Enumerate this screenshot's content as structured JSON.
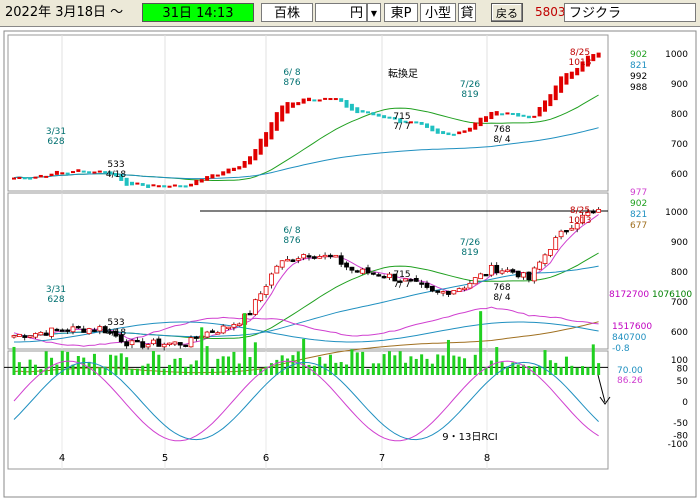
{
  "toolbar": {
    "date": "2022年 3月18日 ～",
    "period": "31日 14:13",
    "unit_label": "百株",
    "currency_value": "円",
    "market": "東P",
    "size_label": "小型",
    "margin_label": "貸",
    "back_button": "戻る",
    "stock_code": "5803",
    "stock_name": "フジクラ"
  },
  "colors": {
    "up": "#e00000",
    "down": "#20c0c0",
    "ma_pink": "#d040d0",
    "ma_green": "#20a020",
    "ma_blue": "#2090c0",
    "ma_olive": "#a07020",
    "volume": "#20d020",
    "period_box": "#00ff00"
  },
  "chart_data": [
    {
      "type": "candlestick",
      "panel": "heikin-ashi",
      "x_labels": [
        "4",
        "5",
        "6",
        "7",
        "8"
      ],
      "y_ticks": [
        "1000",
        "900",
        "800",
        "700",
        "600"
      ],
      "ylim": [
        540,
        1060
      ],
      "right_labels": [
        "902",
        "821",
        "992",
        "988"
      ],
      "annotations": [
        {
          "label": "8/25",
          "value": "1013"
        },
        {
          "label": "6/ 8",
          "value": "876"
        },
        {
          "label": "7/26",
          "value": "819"
        },
        {
          "label": "3/31",
          "value": "628"
        },
        {
          "label": "533",
          "value": "4/18"
        },
        {
          "label": "715",
          "value": "7/ 7"
        },
        {
          "label": "768",
          "value": "8/ 4"
        }
      ],
      "note": "転換足"
    },
    {
      "type": "candlestick",
      "panel": "price",
      "x_labels": [
        "4",
        "5",
        "6",
        "7",
        "8"
      ],
      "y_ticks": [
        "1000",
        "900",
        "800",
        "700",
        "600"
      ],
      "ylim": [
        540,
        1060
      ],
      "right_labels": [
        "977",
        "902",
        "821",
        "677"
      ],
      "annotations": [
        {
          "label": "8/25",
          "value": "1013"
        },
        {
          "label": "6/ 8",
          "value": "876"
        },
        {
          "label": "7/26",
          "value": "819"
        },
        {
          "label": "3/31",
          "value": "628"
        },
        {
          "label": "533",
          "value": "4/18"
        },
        {
          "label": "715",
          "value": "7/ 7"
        },
        {
          "label": "768",
          "value": "8/ 4"
        }
      ],
      "horizontal_line": 1000
    },
    {
      "type": "bar",
      "panel": "volume",
      "right_labels": [
        "8172700",
        "1076100",
        "1517600",
        "840700",
        "-0.8"
      ]
    },
    {
      "type": "line",
      "panel": "rci",
      "title": "9・13日RCI",
      "y_ticks": [
        "100",
        "80",
        "50",
        "0",
        "-50",
        "-80",
        "-100"
      ],
      "ylim": [
        -100,
        100
      ],
      "right_labels": [
        "70.00",
        "86.26"
      ],
      "horizontal_line": 80
    }
  ]
}
